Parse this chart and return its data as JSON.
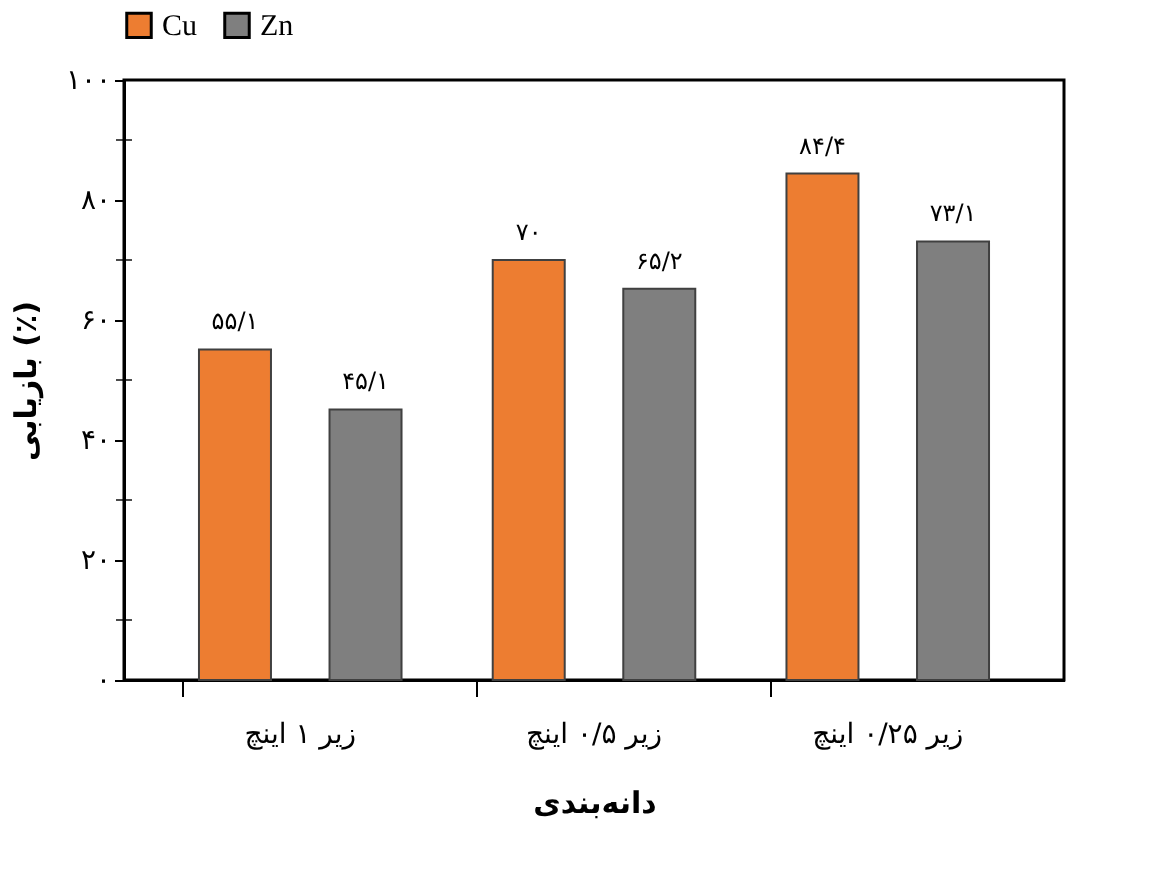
{
  "chart_data": {
    "type": "bar",
    "categories": [
      "زیر ۱ اینچ",
      "زیر ۰/۵ اینچ",
      "زیر ۰/۲۵ اینچ"
    ],
    "xlabel": "دانه‌بندی",
    "ylabel": "بازیابی (٪)",
    "series": [
      {
        "name": "Cu",
        "color": "#ed7d31",
        "values": [
          55.1,
          70,
          84.4
        ],
        "value_labels": [
          "۵۵/۱",
          "۷۰",
          "۸۴/۴"
        ]
      },
      {
        "name": "Zn",
        "color": "#7f7f7f",
        "values": [
          45.1,
          65.2,
          73.1
        ],
        "value_labels": [
          "۴۵/۱",
          "۶۵/۲",
          "۷۳/۱"
        ]
      }
    ],
    "ylim": [
      0,
      100
    ],
    "yticks": [
      {
        "value": 0,
        "label": "۰"
      },
      {
        "value": 10,
        "label": null
      },
      {
        "value": 20,
        "label": "۲۰"
      },
      {
        "value": 30,
        "label": null
      },
      {
        "value": 40,
        "label": "۴۰"
      },
      {
        "value": 50,
        "label": null
      },
      {
        "value": 60,
        "label": "۶۰"
      },
      {
        "value": 70,
        "label": null
      },
      {
        "value": 80,
        "label": "۸۰"
      },
      {
        "value": 90,
        "label": null
      },
      {
        "value": 100,
        "label": "۱۰۰"
      }
    ],
    "grid": false,
    "legend": "top"
  }
}
